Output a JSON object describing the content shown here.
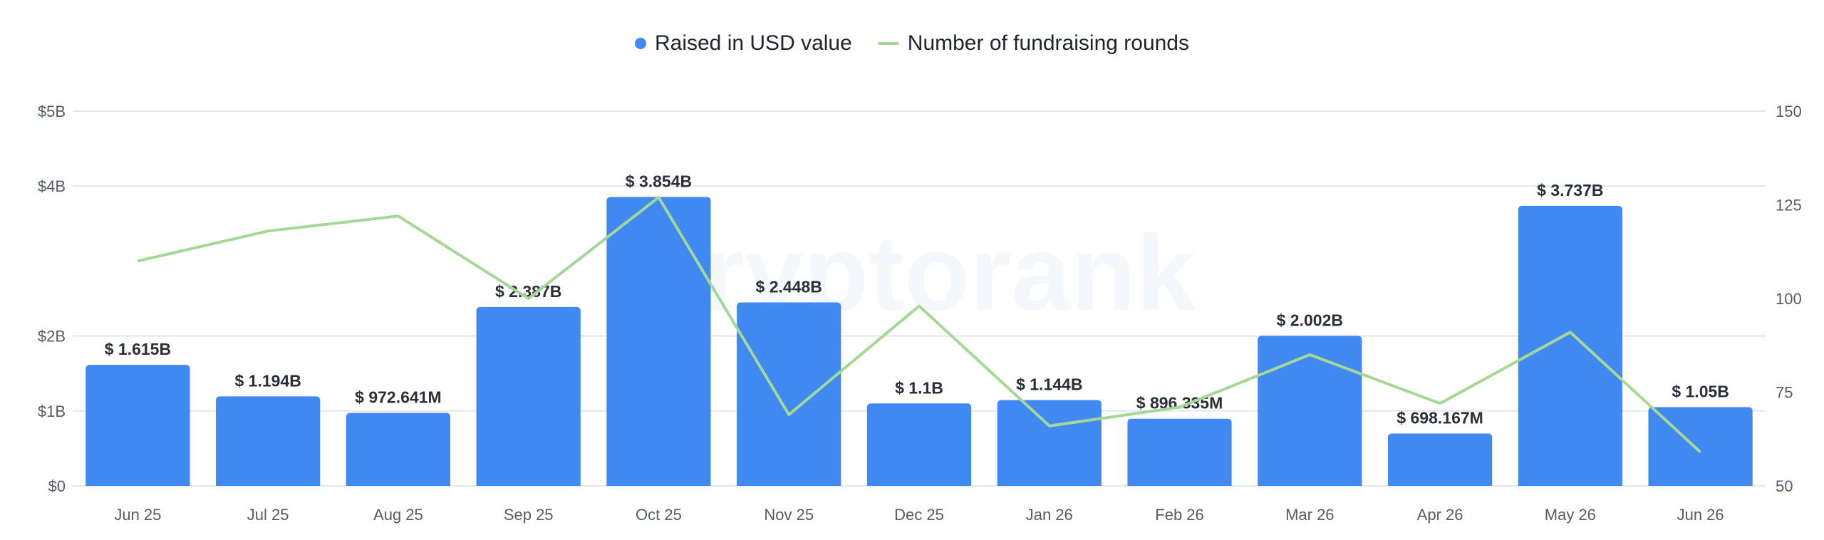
{
  "legend": {
    "bar_series": "Raised in USD value",
    "line_series": "Number of fundraising rounds"
  },
  "watermark": "cryptorank",
  "colors": {
    "bar": "#4088f2",
    "line": "#a6d895",
    "grid": "#e3e6ea",
    "text": "#555b66"
  },
  "chart_data": {
    "type": "bar",
    "categories": [
      "Jun 25",
      "Jul 25",
      "Aug 25",
      "Sep 25",
      "Oct 25",
      "Nov 25",
      "Dec 25",
      "Jan 26",
      "Feb 26",
      "Mar 26",
      "Apr 26",
      "May 26",
      "Jun 26"
    ],
    "series": [
      {
        "name": "Raised in USD value",
        "type": "bar",
        "axis": "left",
        "values": [
          1.615,
          1.194,
          0.972641,
          2.387,
          3.854,
          2.448,
          1.1,
          1.144,
          0.896335,
          2.002,
          0.698167,
          3.737,
          1.05
        ],
        "labels": [
          "$ 1.615B",
          "$ 1.194B",
          "$ 972.641M",
          "$ 2.387B",
          "$ 3.854B",
          "$ 2.448B",
          "$ 1.1B",
          "$ 1.144B",
          "$ 896.335M",
          "$ 2.002B",
          "$ 698.167M",
          "$ 3.737B",
          "$ 1.05B"
        ]
      },
      {
        "name": "Number of fundraising rounds",
        "type": "line",
        "axis": "right",
        "values": [
          110,
          118,
          122,
          100,
          127,
          69,
          98,
          66,
          71,
          85,
          72,
          91,
          59
        ]
      }
    ],
    "left_axis": {
      "min": 0,
      "max": 5,
      "ticks": [
        0,
        1,
        2,
        4,
        5
      ],
      "tick_labels": [
        "$0",
        "$1B",
        "$2B",
        "$4B",
        "$5B"
      ]
    },
    "right_axis": {
      "min": 50,
      "max": 150,
      "ticks": [
        50,
        75,
        100,
        125,
        150
      ],
      "tick_labels": [
        "50",
        "75",
        "100",
        "125",
        "150"
      ]
    },
    "grid": true,
    "legend_position": "top-center"
  }
}
